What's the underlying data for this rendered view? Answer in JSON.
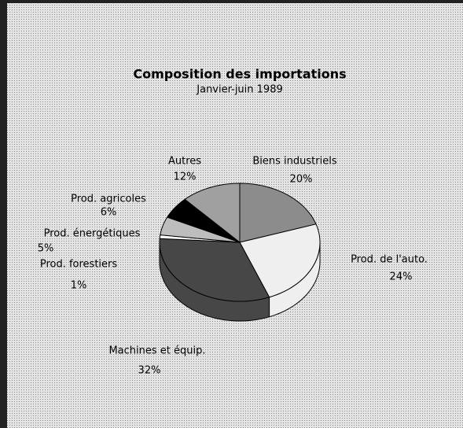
{
  "chart_data": {
    "type": "pie",
    "title": "Composition des importations",
    "subtitle": "Janvier-juin 1989",
    "categories": [
      "Biens industriels",
      "Prod. de l'auto.",
      "Machines et équip.",
      "Prod. forestiers",
      "Prod. énergétiques",
      "Prod. agricoles",
      "Autres"
    ],
    "values": [
      20,
      24,
      32,
      1,
      5,
      6,
      12
    ],
    "value_labels": [
      "20%",
      "24%",
      "32%",
      "1%",
      "5%",
      "6%",
      "12%"
    ],
    "colors": [
      "#8c8c8c",
      "#efefef",
      "#474747",
      "#ffffff",
      "#bdbdbd",
      "#000000",
      "#a0a0a0"
    ]
  }
}
